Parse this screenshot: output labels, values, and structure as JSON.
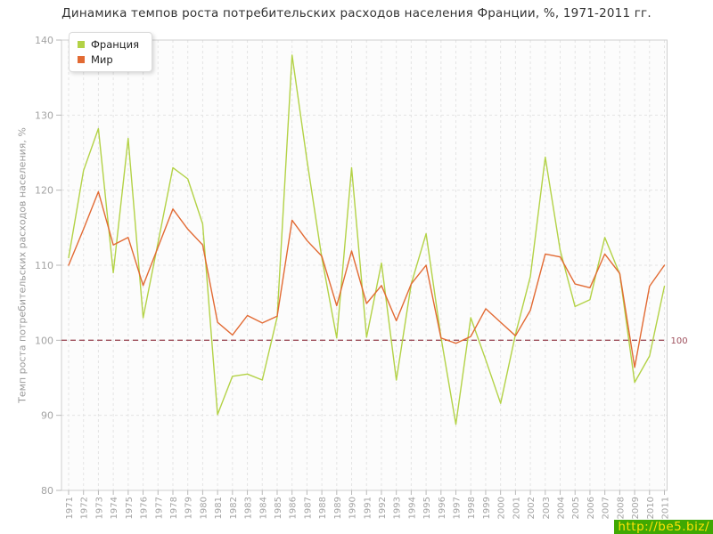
{
  "chart_data": {
    "type": "line",
    "title": "Динамика темпов роста потребительских расходов населения Франции, %, 1971-2011 гг.",
    "ylabel": "Темп роста потребительских расходов населения, %",
    "xlabel": "",
    "ylim": [
      80,
      140
    ],
    "y_ticks": [
      80,
      90,
      100,
      110,
      120,
      130,
      140
    ],
    "grid": true,
    "legend_position": "top-left",
    "x": [
      1971,
      1972,
      1973,
      1974,
      1975,
      1976,
      1977,
      1978,
      1979,
      1980,
      1981,
      1982,
      1983,
      1984,
      1985,
      1986,
      1987,
      1988,
      1989,
      1990,
      1991,
      1992,
      1993,
      1994,
      1995,
      1996,
      1997,
      1998,
      1999,
      2000,
      2001,
      2002,
      2003,
      2004,
      2005,
      2006,
      2007,
      2008,
      2009,
      2010,
      2011
    ],
    "series": [
      {
        "name": "Франция",
        "color": "#b3d246",
        "values": [
          111.0,
          122.6,
          128.2,
          109.0,
          126.9,
          103.0,
          113.0,
          123.0,
          121.5,
          115.5,
          90.1,
          95.2,
          95.5,
          94.7,
          103.1,
          138.0,
          124.0,
          111.0,
          100.3,
          123.0,
          100.4,
          110.3,
          94.7,
          107.5,
          114.2,
          100.4,
          88.8,
          103.0,
          97.4,
          91.6,
          100.8,
          108.5,
          124.4,
          112.0,
          104.5,
          105.4,
          113.7,
          108.8,
          94.4,
          97.9,
          107.2
        ]
      },
      {
        "name": "Мир",
        "color": "#e26a33",
        "values": [
          110.0,
          114.8,
          119.8,
          112.7,
          113.7,
          107.3,
          112.4,
          117.5,
          114.8,
          112.7,
          102.4,
          100.7,
          103.3,
          102.3,
          103.2,
          116.0,
          113.3,
          111.2,
          104.6,
          111.9,
          104.9,
          107.3,
          102.6,
          107.5,
          110.0,
          100.3,
          99.6,
          100.5,
          104.2,
          102.4,
          100.6,
          104.0,
          111.5,
          111.1,
          107.5,
          107.0,
          111.5,
          108.9,
          96.4,
          107.2,
          110.0
        ]
      }
    ],
    "ref_line": {
      "value": 100,
      "label": "100",
      "color": "#9e4f5c"
    },
    "plot_bg": "#fcfcfc",
    "grid_color": "#e4e4e4",
    "border_color": "#cfcfcf",
    "tick_color": "#b8b8b8",
    "axis_text_color": "#a3a3a3"
  },
  "watermark": {
    "text": "http://be5.biz/",
    "bg": "#3fa802",
    "color": "#ffe207"
  }
}
